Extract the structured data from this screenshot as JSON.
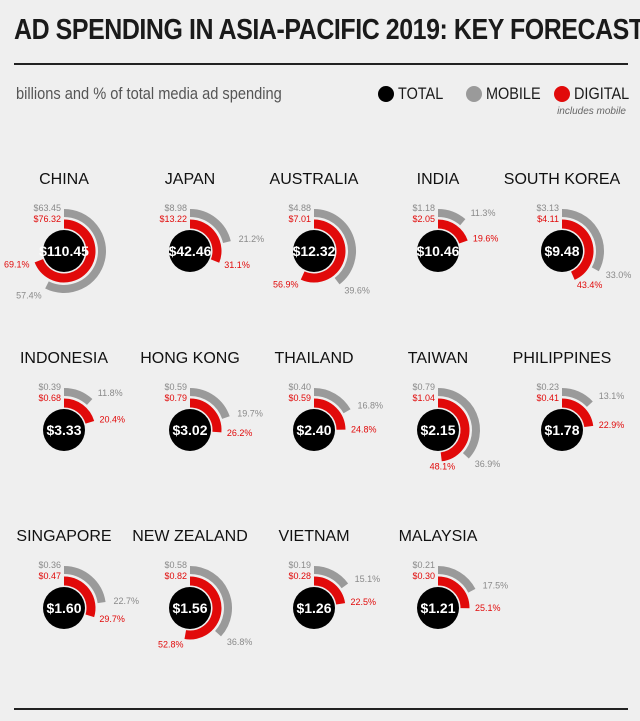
{
  "title": "AD SPENDING IN ASIA-PACIFIC 2019: KEY FORECASTS",
  "subtitle": "billions and % of total media ad spending",
  "legend": {
    "total": "TOTAL",
    "mobile": "MOBILE",
    "digital": "DIGITAL",
    "note": "includes mobile"
  },
  "colors": {
    "total": "#000000",
    "mobile": "#9a9a9a",
    "digital": "#e10a0a",
    "background": "#efefef"
  },
  "chart_data": {
    "type": "radial_bar",
    "title": "AD SPENDING IN ASIA-PACIFIC 2019: KEY FORECASTS",
    "unit": "billions and % of total media ad spending",
    "series": [
      {
        "name": "TOTAL"
      },
      {
        "name": "MOBILE"
      },
      {
        "name": "DIGITAL"
      }
    ],
    "countries": [
      {
        "name": "CHINA",
        "total": "$110.45",
        "mobile": "$63.45",
        "digital": "$76.32",
        "mobile_pct": "57.4%",
        "digital_pct": "69.1%",
        "mobile_share": 57.4,
        "digital_share": 69.1
      },
      {
        "name": "JAPAN",
        "total": "$42.46",
        "mobile": "$8.98",
        "digital": "$13.22",
        "mobile_pct": "21.2%",
        "digital_pct": "31.1%",
        "mobile_share": 21.2,
        "digital_share": 31.1
      },
      {
        "name": "AUSTRALIA",
        "total": "$12.32",
        "mobile": "$4.88",
        "digital": "$7.01",
        "mobile_pct": "39.6%",
        "digital_pct": "56.9%",
        "mobile_share": 39.6,
        "digital_share": 56.9
      },
      {
        "name": "INDIA",
        "total": "$10.46",
        "mobile": "$1.18",
        "digital": "$2.05",
        "mobile_pct": "11.3%",
        "digital_pct": "19.6%",
        "mobile_share": 11.3,
        "digital_share": 19.6
      },
      {
        "name": "SOUTH KOREA",
        "total": "$9.48",
        "mobile": "$3.13",
        "digital": "$4.11",
        "mobile_pct": "33.0%",
        "digital_pct": "43.4%",
        "mobile_share": 33.0,
        "digital_share": 43.4
      },
      {
        "name": "INDONESIA",
        "total": "$3.33",
        "mobile": "$0.39",
        "digital": "$0.68",
        "mobile_pct": "11.8%",
        "digital_pct": "20.4%",
        "mobile_share": 11.8,
        "digital_share": 20.4
      },
      {
        "name": "HONG KONG",
        "total": "$3.02",
        "mobile": "$0.59",
        "digital": "$0.79",
        "mobile_pct": "19.7%",
        "digital_pct": "26.2%",
        "mobile_share": 19.7,
        "digital_share": 26.2
      },
      {
        "name": "THAILAND",
        "total": "$2.40",
        "mobile": "$0.40",
        "digital": "$0.59",
        "mobile_pct": "16.8%",
        "digital_pct": "24.8%",
        "mobile_share": 16.8,
        "digital_share": 24.8
      },
      {
        "name": "TAIWAN",
        "total": "$2.15",
        "mobile": "$0.79",
        "digital": "$1.04",
        "mobile_pct": "36.9%",
        "digital_pct": "48.1%",
        "mobile_share": 36.9,
        "digital_share": 48.1
      },
      {
        "name": "PHILIPPINES",
        "total": "$1.78",
        "mobile": "$0.23",
        "digital": "$0.41",
        "mobile_pct": "13.1%",
        "digital_pct": "22.9%",
        "mobile_share": 13.1,
        "digital_share": 22.9
      },
      {
        "name": "SINGAPORE",
        "total": "$1.60",
        "mobile": "$0.36",
        "digital": "$0.47",
        "mobile_pct": "22.7%",
        "digital_pct": "29.7%",
        "mobile_share": 22.7,
        "digital_share": 29.7
      },
      {
        "name": "NEW ZEALAND",
        "total": "$1.56",
        "mobile": "$0.58",
        "digital": "$0.82",
        "mobile_pct": "36.8%",
        "digital_pct": "52.8%",
        "mobile_share": 36.8,
        "digital_share": 52.8
      },
      {
        "name": "VIETNAM",
        "total": "$1.26",
        "mobile": "$0.19",
        "digital": "$0.28",
        "mobile_pct": "15.1%",
        "digital_pct": "22.5%",
        "mobile_share": 15.1,
        "digital_share": 22.5
      },
      {
        "name": "MALAYSIA",
        "total": "$1.21",
        "mobile": "$0.21",
        "digital": "$0.30",
        "mobile_pct": "17.5%",
        "digital_pct": "25.1%",
        "mobile_share": 17.5,
        "digital_share": 25.1
      }
    ]
  }
}
